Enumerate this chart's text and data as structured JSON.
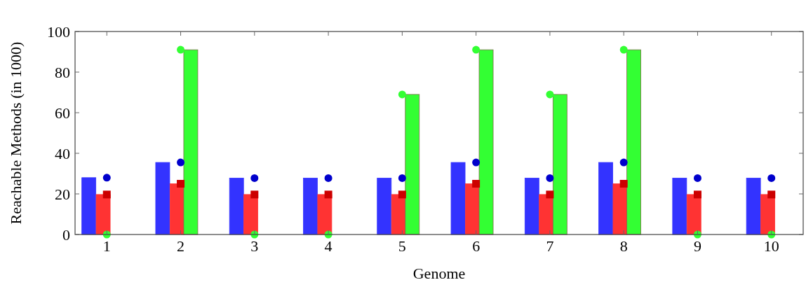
{
  "chart_data": {
    "type": "bar",
    "xlabel": "Genome",
    "ylabel": "Reachable Methods (in 1000)",
    "categories": [
      "1",
      "2",
      "3",
      "4",
      "5",
      "6",
      "7",
      "8",
      "9",
      "10"
    ],
    "ylim": [
      0,
      100
    ],
    "yticks": [
      0,
      20,
      40,
      60,
      80,
      100
    ],
    "grid": false,
    "series": [
      {
        "color": "#3333ff",
        "values": [
          28,
          35.5,
          27.8,
          27.8,
          27.8,
          35.5,
          27.8,
          35.5,
          27.8,
          27.8
        ]
      },
      {
        "color": "#ff3333",
        "values": [
          19.7,
          25,
          19.7,
          19.7,
          19.7,
          25,
          19.7,
          25,
          19.7,
          19.7
        ]
      },
      {
        "color": "#33ff33",
        "values": [
          0,
          91,
          0,
          0,
          69,
          91,
          69,
          91,
          0,
          0
        ]
      },
      {
        "type": "scatter",
        "marker": "circle",
        "color": "#0000cc",
        "x": [
          "1",
          "2",
          "3",
          "4",
          "5",
          "6",
          "7",
          "8",
          "9",
          "10"
        ],
        "values": [
          28,
          35.5,
          27.8,
          27.8,
          27.8,
          35.5,
          27.8,
          35.5,
          27.8,
          27.8
        ]
      },
      {
        "type": "scatter",
        "marker": "square",
        "color": "#cc0000",
        "x": [
          "1",
          "2",
          "3",
          "4",
          "5",
          "6",
          "7",
          "8",
          "9",
          "10"
        ],
        "values": [
          19.7,
          25,
          19.7,
          19.7,
          19.7,
          25,
          19.7,
          25,
          19.7,
          19.7
        ]
      },
      {
        "type": "scatter",
        "marker": "circle",
        "color": "#33ff33",
        "x": [
          "1",
          "2",
          "3",
          "4",
          "5",
          "6",
          "7",
          "8",
          "9",
          "10"
        ],
        "values": [
          0,
          91,
          0,
          0,
          69,
          91,
          69,
          91,
          0,
          0
        ]
      }
    ]
  }
}
